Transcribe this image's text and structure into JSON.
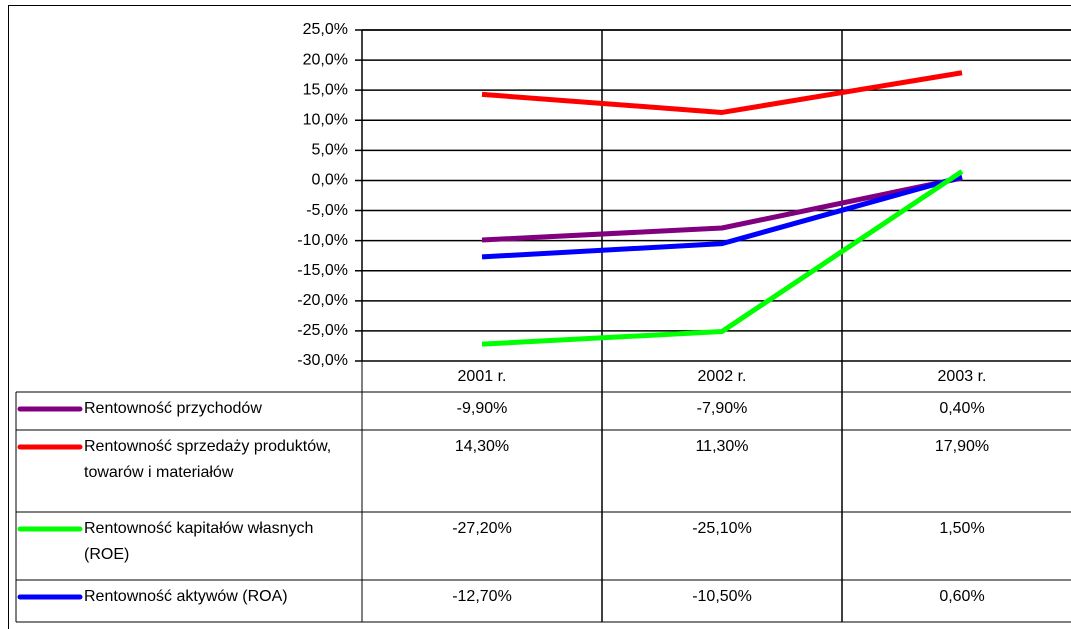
{
  "chart_data": {
    "type": "line",
    "categories": [
      "2001 r.",
      "2002 r.",
      "2003 r."
    ],
    "ylim": [
      -30,
      25
    ],
    "yticks": [
      {
        "value": -30,
        "label": "-30,0%"
      },
      {
        "value": -25,
        "label": "-25,0%"
      },
      {
        "value": -20,
        "label": "-20,0%"
      },
      {
        "value": -15,
        "label": "-15,0%"
      },
      {
        "value": -10,
        "label": "-10,0%"
      },
      {
        "value": -5,
        "label": "-5,0%"
      },
      {
        "value": 0,
        "label": "0,0%"
      },
      {
        "value": 5,
        "label": "5,0%"
      },
      {
        "value": 10,
        "label": "10,0%"
      },
      {
        "value": 15,
        "label": "15,0%"
      },
      {
        "value": 20,
        "label": "20,0%"
      },
      {
        "value": 25,
        "label": "25,0%"
      }
    ],
    "grid": true,
    "series": [
      {
        "name": "Rentowność przychodów",
        "color": "#800080",
        "values": [
          -9.9,
          -7.9,
          0.4
        ],
        "value_labels": [
          "-9,90%",
          "-7,90%",
          "0,40%"
        ]
      },
      {
        "name": "Rentowność sprzedaży produktów, towarów i materiałów",
        "color": "#ff0000",
        "values": [
          14.3,
          11.3,
          17.9
        ],
        "value_labels": [
          "14,30%",
          "11,30%",
          "17,90%"
        ]
      },
      {
        "name": "Rentowność kapitałów własnych (ROE)",
        "color": "#00ff00",
        "values": [
          -27.2,
          -25.1,
          1.5
        ],
        "value_labels": [
          "-27,20%",
          "-25,10%",
          "1,50%"
        ]
      },
      {
        "name": "Rentowność aktywów (ROA)",
        "color": "#0000ff",
        "values": [
          -12.7,
          -10.5,
          0.6
        ],
        "value_labels": [
          "-12,70%",
          "-10,50%",
          "0,60%"
        ]
      }
    ]
  }
}
